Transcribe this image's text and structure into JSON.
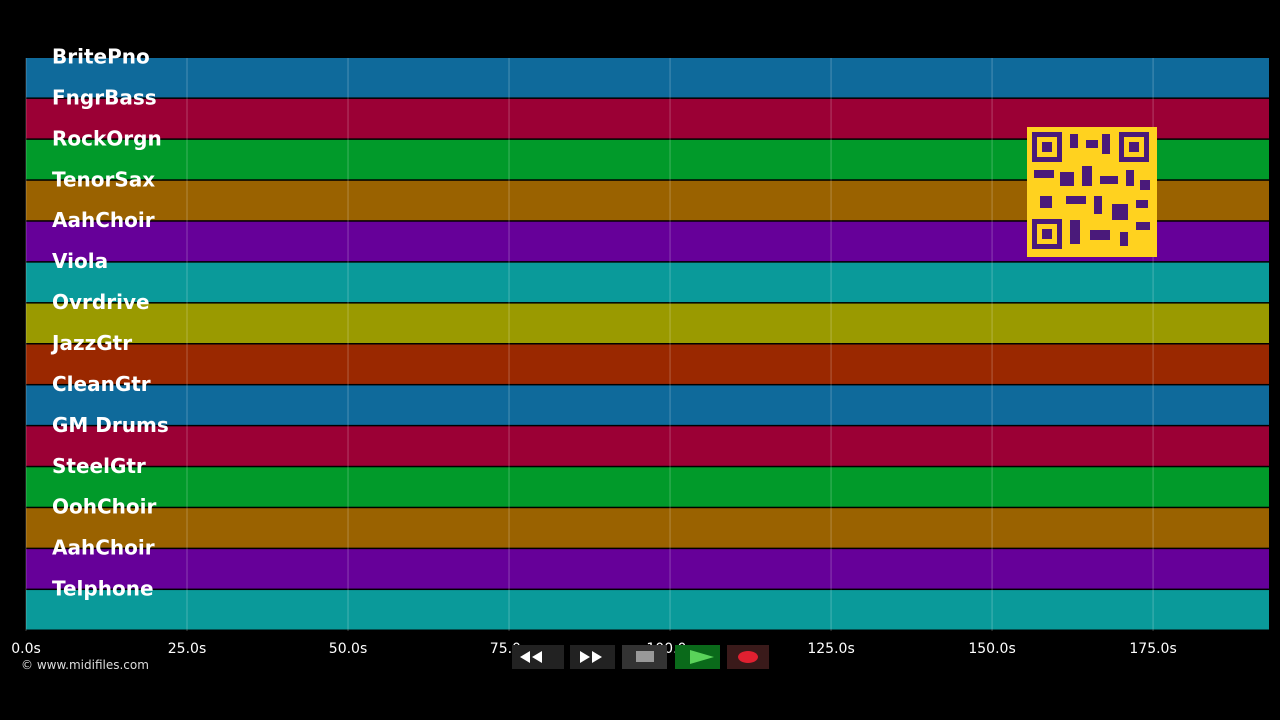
{
  "tracks": [
    {
      "name": "BritePno",
      "color": "#0f6a9b"
    },
    {
      "name": "FngrBass",
      "color": "#9b0035"
    },
    {
      "name": "RockOrgn",
      "color": "#019a2a"
    },
    {
      "name": "TenorSax",
      "color": "#9a6200"
    },
    {
      "name": "AahChoir",
      "color": "#660099"
    },
    {
      "name": "Viola",
      "color": "#0a9a9a"
    },
    {
      "name": "Ovrdrive",
      "color": "#9a9a00"
    },
    {
      "name": "JazzGtr",
      "color": "#9a2800"
    },
    {
      "name": "CleanGtr",
      "color": "#0f6a9b"
    },
    {
      "name": "GM Drums",
      "color": "#9b0035"
    },
    {
      "name": "SteelGtr",
      "color": "#019a2a"
    },
    {
      "name": "OohChoir",
      "color": "#9a6200"
    },
    {
      "name": "AahChoir",
      "color": "#660099"
    },
    {
      "name": "Telphone",
      "color": "#0a9a9a"
    }
  ],
  "time_axis": {
    "xlim": [
      0,
      193
    ],
    "xticks": [
      {
        "value": 0,
        "label": "0.0s"
      },
      {
        "value": 25,
        "label": "25.0s"
      },
      {
        "value": 50,
        "label": "50.0s"
      },
      {
        "value": 75,
        "label": "75.0s"
      },
      {
        "value": 100,
        "label": "100.0s"
      },
      {
        "value": 125,
        "label": "125.0s"
      },
      {
        "value": 150,
        "label": "150.0s"
      },
      {
        "value": 175,
        "label": "175.0s"
      }
    ]
  },
  "footer": "© www.midifiles.com"
}
